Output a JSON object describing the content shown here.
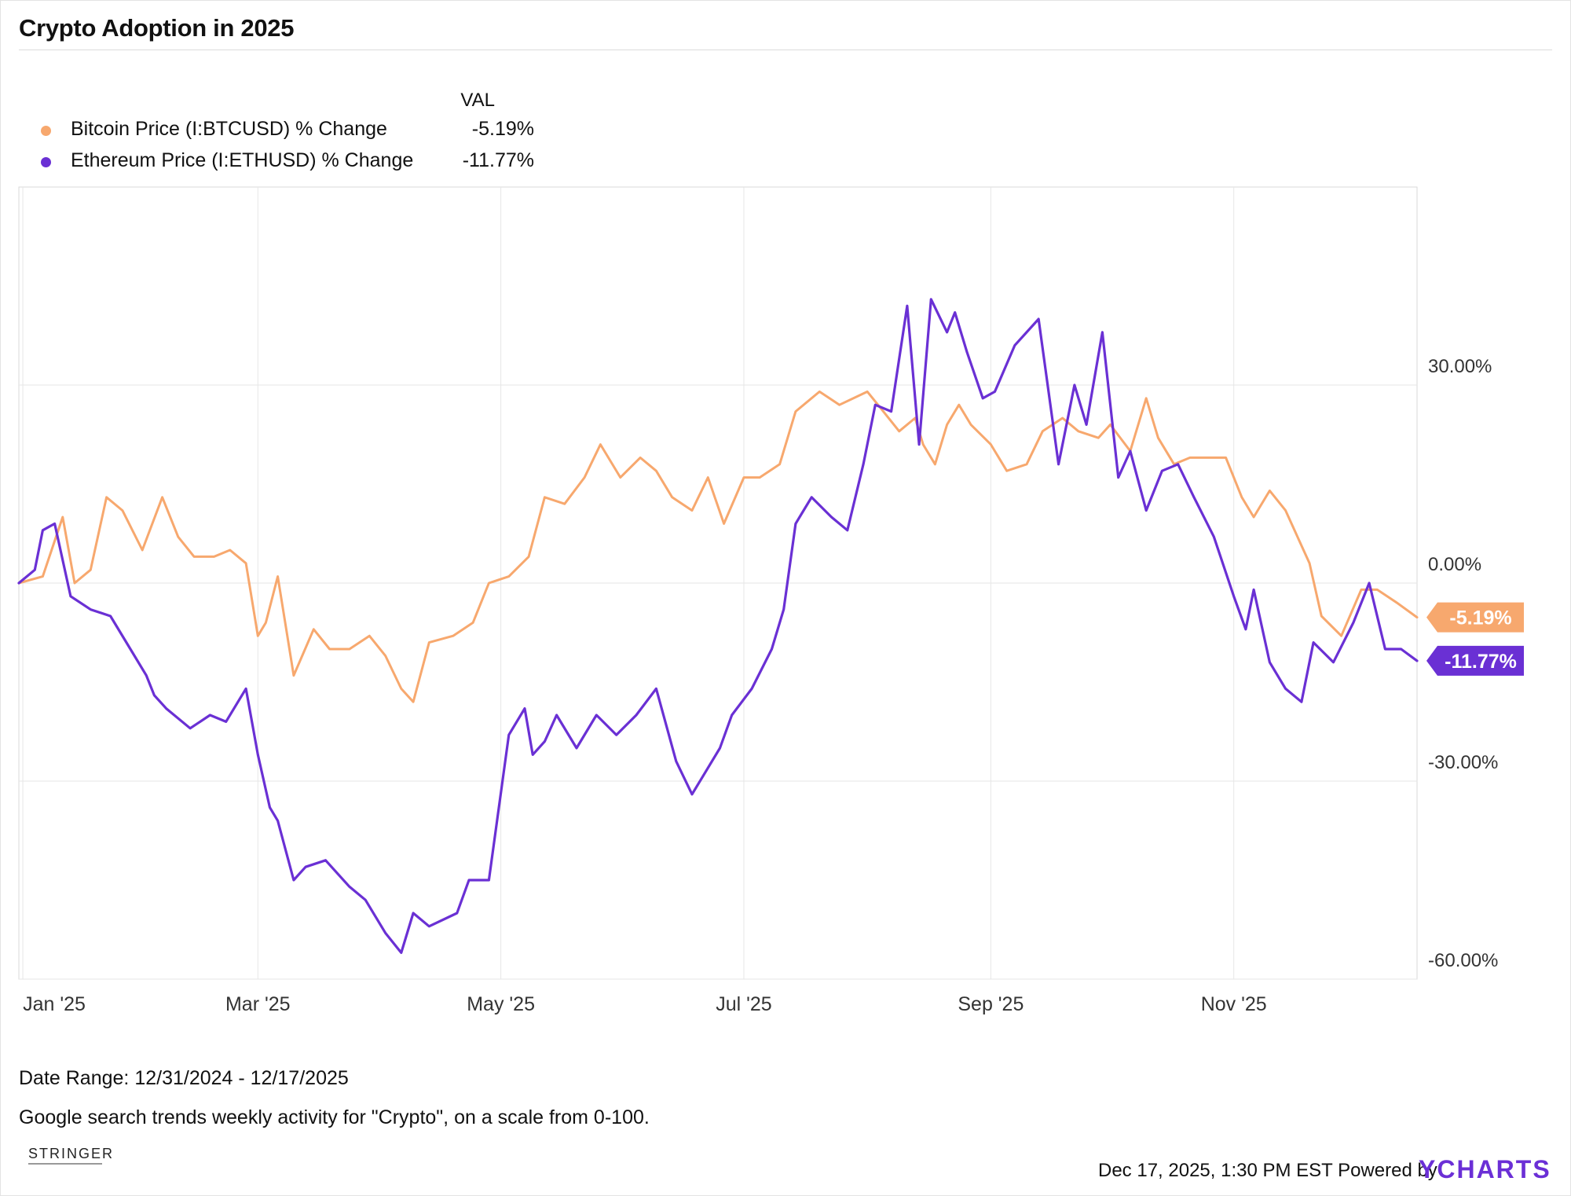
{
  "title": "Crypto Adoption in 2025",
  "legend": {
    "header": "VAL",
    "items": [
      {
        "label": "Bitcoin Price (I:BTCUSD) % Change",
        "value": "-5.19%",
        "color": "#f7a86e"
      },
      {
        "label": "Ethereum Price (I:ETHUSD) % Change",
        "value": "-11.77%",
        "color": "#6a30d4"
      }
    ]
  },
  "footer": {
    "date_range": "Date Range: 12/31/2024 - 12/17/2025",
    "note": "Google search trends weekly activity for \"Crypto\", on a scale from 0-100.",
    "timestamp": "Dec 17, 2025, 1:30 PM EST Powered by",
    "brand": "YCHARTS",
    "watermark": "STRINGER"
  },
  "chart_data": {
    "type": "line",
    "x_tick_labels": [
      "Jan '25",
      "Mar '25",
      "May '25",
      "Jul '25",
      "Sep '25",
      "Nov '25"
    ],
    "x_ticks": [
      "2025-01-01",
      "2025-03-01",
      "2025-05-01",
      "2025-07-01",
      "2025-09-01",
      "2025-11-01"
    ],
    "x_range": [
      "2024-12-31",
      "2025-12-17"
    ],
    "y_tick_labels": [
      "30.00%",
      "0.00%",
      "-30.00%",
      "-60.00%"
    ],
    "y_ticks": [
      30,
      0,
      -30,
      -60
    ],
    "ylim": [
      -60,
      60
    ],
    "y_axis_side": "right",
    "grid": true,
    "series": [
      {
        "name": "Bitcoin Price (I:BTCUSD) % Change",
        "color": "#f7a86e",
        "end_label": "-5.19%",
        "x": [
          "2024-12-31",
          "2025-01-06",
          "2025-01-11",
          "2025-01-14",
          "2025-01-18",
          "2025-01-22",
          "2025-01-26",
          "2025-01-31",
          "2025-02-05",
          "2025-02-09",
          "2025-02-13",
          "2025-02-18",
          "2025-02-22",
          "2025-02-26",
          "2025-03-01",
          "2025-03-03",
          "2025-03-06",
          "2025-03-10",
          "2025-03-15",
          "2025-03-19",
          "2025-03-24",
          "2025-03-29",
          "2025-04-02",
          "2025-04-06",
          "2025-04-09",
          "2025-04-13",
          "2025-04-19",
          "2025-04-24",
          "2025-04-28",
          "2025-05-03",
          "2025-05-08",
          "2025-05-12",
          "2025-05-17",
          "2025-05-22",
          "2025-05-26",
          "2025-05-31",
          "2025-06-05",
          "2025-06-09",
          "2025-06-13",
          "2025-06-18",
          "2025-06-22",
          "2025-06-26",
          "2025-07-01",
          "2025-07-05",
          "2025-07-10",
          "2025-07-14",
          "2025-07-20",
          "2025-07-25",
          "2025-08-01",
          "2025-08-05",
          "2025-08-09",
          "2025-08-13",
          "2025-08-15",
          "2025-08-18",
          "2025-08-21",
          "2025-08-24",
          "2025-08-27",
          "2025-09-01",
          "2025-09-05",
          "2025-09-10",
          "2025-09-14",
          "2025-09-19",
          "2025-09-23",
          "2025-09-28",
          "2025-10-01",
          "2025-10-06",
          "2025-10-10",
          "2025-10-13",
          "2025-10-17",
          "2025-10-21",
          "2025-10-25",
          "2025-10-30",
          "2025-11-03",
          "2025-11-06",
          "2025-11-10",
          "2025-11-14",
          "2025-11-20",
          "2025-11-23",
          "2025-11-28",
          "2025-12-03",
          "2025-12-07",
          "2025-12-12",
          "2025-12-17"
        ],
        "y": [
          0,
          1,
          10,
          0,
          2,
          13,
          11,
          5,
          13,
          7,
          4,
          4,
          5,
          3,
          -8,
          -6,
          1,
          -14,
          -7,
          -10,
          -10,
          -8,
          -11,
          -16,
          -18,
          -9,
          -8,
          -6,
          0,
          1,
          4,
          13,
          12,
          16,
          21,
          16,
          19,
          17,
          13,
          11,
          16,
          9,
          16,
          16,
          18,
          26,
          29,
          27,
          29,
          26,
          23,
          25,
          21,
          18,
          24,
          27,
          24,
          21,
          17,
          18,
          23,
          25,
          23,
          22,
          24,
          20,
          28,
          22,
          18,
          19,
          19,
          19,
          13,
          10,
          14,
          11,
          3,
          -5,
          -8,
          -1,
          -1,
          -3,
          -5.19
        ]
      },
      {
        "name": "Ethereum Price (I:ETHUSD) % Change",
        "color": "#6a30d4",
        "end_label": "-11.77%",
        "x": [
          "2024-12-31",
          "2025-01-04",
          "2025-01-06",
          "2025-01-09",
          "2025-01-13",
          "2025-01-18",
          "2025-01-23",
          "2025-01-28",
          "2025-02-01",
          "2025-02-03",
          "2025-02-06",
          "2025-02-12",
          "2025-02-17",
          "2025-02-21",
          "2025-02-26",
          "2025-03-01",
          "2025-03-04",
          "2025-03-06",
          "2025-03-10",
          "2025-03-13",
          "2025-03-18",
          "2025-03-24",
          "2025-03-28",
          "2025-04-02",
          "2025-04-06",
          "2025-04-09",
          "2025-04-13",
          "2025-04-20",
          "2025-04-23",
          "2025-04-28",
          "2025-05-03",
          "2025-05-07",
          "2025-05-09",
          "2025-05-12",
          "2025-05-15",
          "2025-05-20",
          "2025-05-25",
          "2025-05-30",
          "2025-06-04",
          "2025-06-09",
          "2025-06-14",
          "2025-06-18",
          "2025-06-22",
          "2025-06-25",
          "2025-06-28",
          "2025-07-03",
          "2025-07-08",
          "2025-07-11",
          "2025-07-14",
          "2025-07-18",
          "2025-07-23",
          "2025-07-27",
          "2025-07-31",
          "2025-08-03",
          "2025-08-07",
          "2025-08-11",
          "2025-08-14",
          "2025-08-17",
          "2025-08-21",
          "2025-08-23",
          "2025-08-26",
          "2025-08-30",
          "2025-09-02",
          "2025-09-07",
          "2025-09-13",
          "2025-09-18",
          "2025-09-22",
          "2025-09-25",
          "2025-09-29",
          "2025-10-03",
          "2025-10-06",
          "2025-10-10",
          "2025-10-14",
          "2025-10-18",
          "2025-10-22",
          "2025-10-27",
          "2025-11-01",
          "2025-11-04",
          "2025-11-06",
          "2025-11-10",
          "2025-11-14",
          "2025-11-18",
          "2025-11-21",
          "2025-11-26",
          "2025-12-01",
          "2025-12-05",
          "2025-12-09",
          "2025-12-13",
          "2025-12-17"
        ],
        "y": [
          0,
          2,
          8,
          9,
          -2,
          -4,
          -5,
          -10,
          -14,
          -17,
          -19,
          -22,
          -20,
          -21,
          -16,
          -26,
          -34,
          -36,
          -45,
          -43,
          -42,
          -46,
          -48,
          -53,
          -56,
          -50,
          -52,
          -50,
          -45,
          -45,
          -23,
          -19,
          -26,
          -24,
          -20,
          -25,
          -20,
          -23,
          -20,
          -16,
          -27,
          -32,
          -28,
          -25,
          -20,
          -16,
          -10,
          -4,
          9,
          13,
          10,
          8,
          18,
          27,
          26,
          42,
          21,
          43,
          38,
          41,
          35,
          28,
          29,
          36,
          40,
          18,
          30,
          24,
          38,
          16,
          20,
          11,
          17,
          18,
          13,
          7,
          -2,
          -7,
          -1,
          -12,
          -16,
          -18,
          -9,
          -12,
          -6,
          0,
          -10,
          -10,
          -11.77
        ]
      }
    ]
  }
}
